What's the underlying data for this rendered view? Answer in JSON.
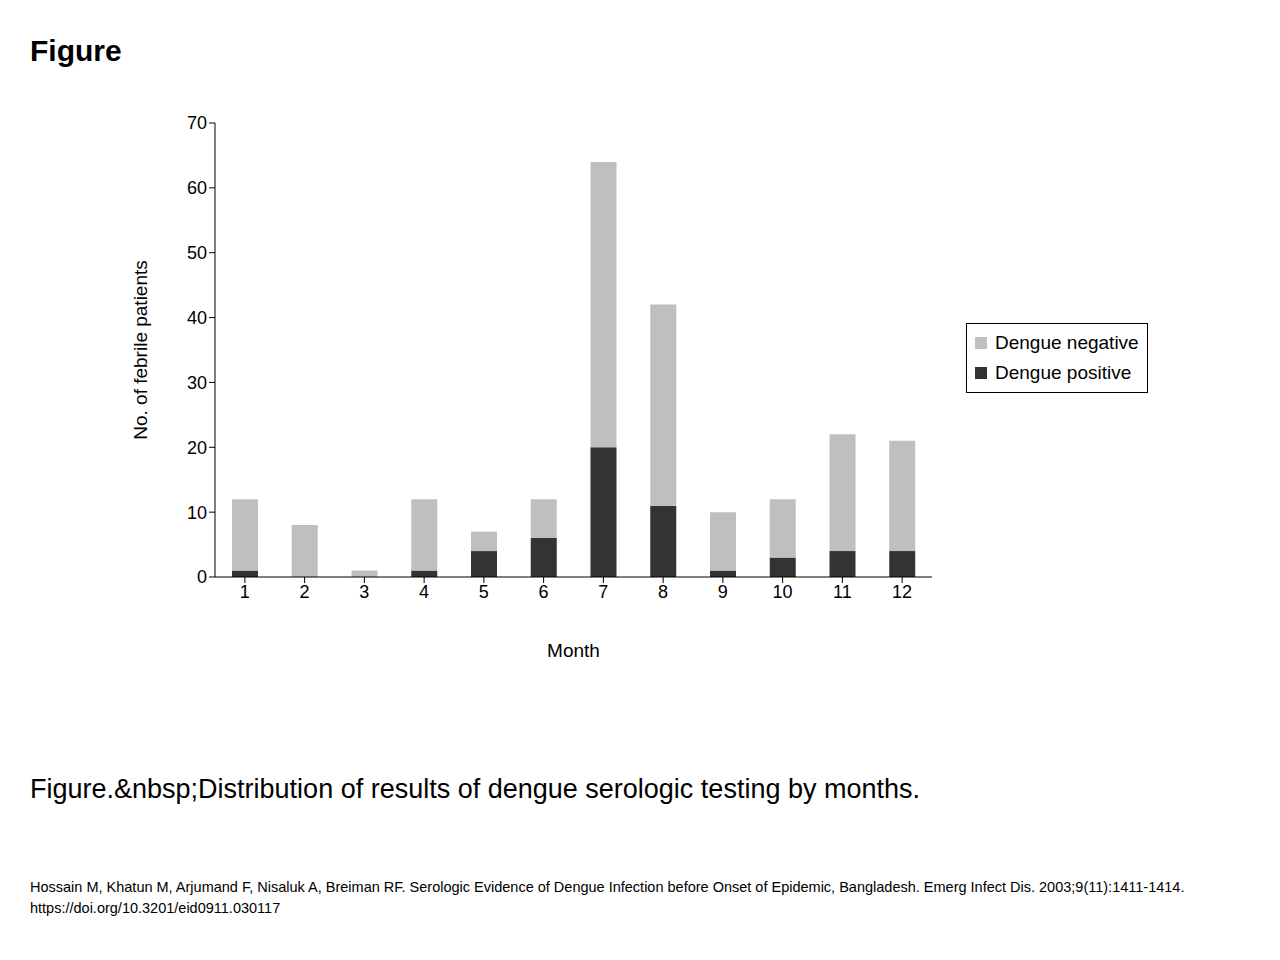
{
  "chart_data": {
    "type": "bar",
    "title": "Figure",
    "annotations": [
      "Figure.&nbsp;Distribution of results of dengue serologic testing by months.",
      "Hossain M, Khatun M, Arjumand F, Nisaluk A, Breiman RF. Serologic Evidence of Dengue Infection before Onset of Epidemic, Bangladesh. Emerg Infect Dis. 2003;9(11):1411-1414.",
      "https://doi.org/10.3201/eid0911.030117"
    ],
    "x_label": "Month",
    "y_label": "No. of febrile patients",
    "categories": [
      1,
      2,
      3,
      4,
      5,
      6,
      7,
      8,
      9,
      10,
      11,
      12
    ],
    "series": [
      {
        "name": "Dengue positive",
        "color": "#333333",
        "values": [
          1,
          0,
          0,
          1,
          4,
          6,
          20,
          11,
          1,
          3,
          4,
          4
        ]
      },
      {
        "name": "Dengue negative",
        "color": "#bfbfbf",
        "values": [
          11,
          8,
          1,
          11,
          3,
          6,
          44,
          31,
          9,
          9,
          18,
          17
        ]
      }
    ],
    "stacked": true,
    "ylim": [
      0,
      70
    ],
    "yticks": [
      0,
      10,
      20,
      30,
      40,
      50,
      60,
      70
    ],
    "grid": false,
    "legend": "right"
  }
}
